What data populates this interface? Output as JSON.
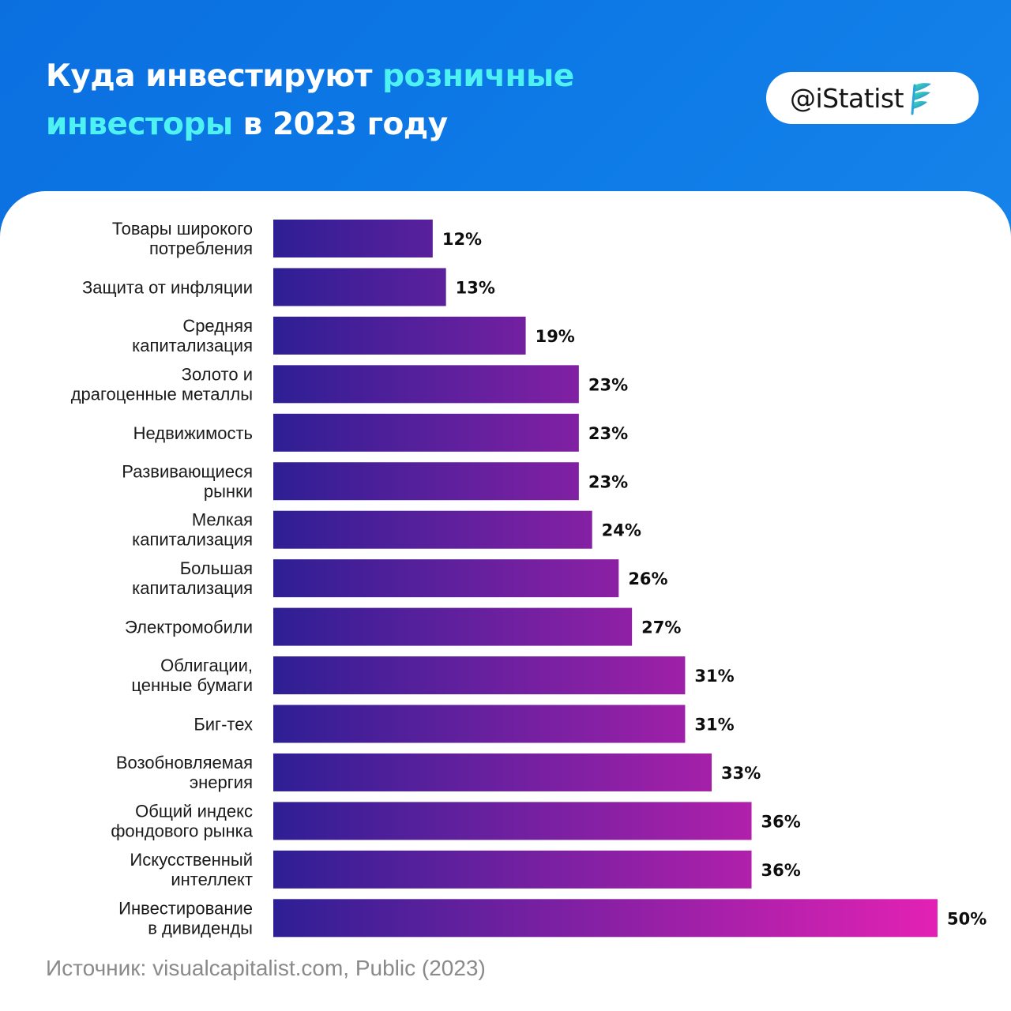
{
  "header": {
    "title_part1": "Куда инвестируют ",
    "title_highlight1": "розничные",
    "title_highlight2": "инвесторы",
    "title_part2": " в 2023 году",
    "title_color": "#ffffff",
    "highlight_color": "#4ff2f2",
    "background_color": "#0b72e2"
  },
  "badge": {
    "handle": "@iStatist",
    "logo_icon": "feather-leaf-icon"
  },
  "footer": {
    "source": "Источник: visualcapitalist.com, Public (2023)"
  },
  "chart_data": {
    "type": "bar",
    "orientation": "horizontal",
    "title": "Куда инвестируют розничные инвесторы в 2023 году",
    "xlabel": "",
    "ylabel": "",
    "unit": "%",
    "xlim": [
      0,
      50
    ],
    "grid": false,
    "legend": "none",
    "gradient": [
      "#2e1f94",
      "#e321b4"
    ],
    "categories": [
      [
        "Товары широкого",
        "потребления"
      ],
      [
        "Защита от инфляции"
      ],
      [
        "Средняя",
        "капитализация"
      ],
      [
        "Золото и",
        "драгоценные металлы"
      ],
      [
        "Недвижимость"
      ],
      [
        "Развивающиеся",
        "рынки"
      ],
      [
        "Мелкая",
        "капитализация"
      ],
      [
        "Большая",
        "капитализация"
      ],
      [
        "Электромобили"
      ],
      [
        "Облигации,",
        "ценные бумаги"
      ],
      [
        "Биг-тех"
      ],
      [
        "Возобновляемая",
        "энергия"
      ],
      [
        "Общий индекс",
        "фондового рынка"
      ],
      [
        "Искусственный",
        "интеллект"
      ],
      [
        "Инвестирование",
        "в дивиденды"
      ]
    ],
    "values": [
      12,
      13,
      19,
      23,
      23,
      23,
      24,
      26,
      27,
      31,
      31,
      33,
      36,
      36,
      50
    ],
    "value_labels": [
      "12%",
      "13%",
      "19%",
      "23%",
      "23%",
      "23%",
      "24%",
      "26%",
      "27%",
      "31%",
      "31%",
      "33%",
      "36%",
      "36%",
      "50%"
    ]
  }
}
